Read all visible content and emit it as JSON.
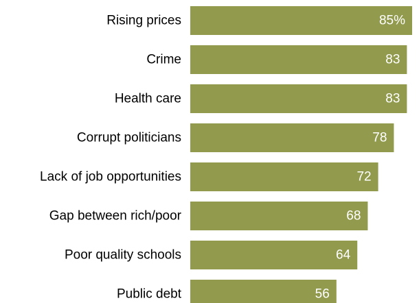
{
  "chart_data": {
    "type": "bar",
    "orientation": "horizontal",
    "categories": [
      "Rising prices",
      "Crime",
      "Health care",
      "Corrupt politicians",
      "Lack of job opportunities",
      "Gap between rich/poor",
      "Poor quality schools",
      "Public debt"
    ],
    "values": [
      85,
      83,
      83,
      78,
      72,
      68,
      64,
      56
    ],
    "value_labels": [
      "85%",
      "83",
      "83",
      "78",
      "72",
      "68",
      "64",
      "56"
    ],
    "xlim": [
      0,
      100
    ],
    "grid": false,
    "legend": "none",
    "bar_color": "#929b4d",
    "value_label_color": "#ffffff"
  }
}
